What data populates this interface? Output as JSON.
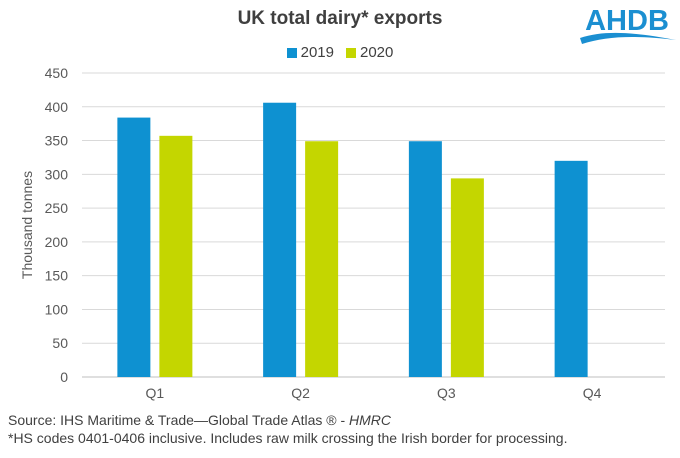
{
  "logo": {
    "text": "AHDB",
    "color": "#1b8fd1"
  },
  "colors": {
    "s2019": "#0e91d1",
    "s2020": "#c4d600",
    "grid": "#d9d9d9"
  },
  "footer": {
    "source_prefix": "Source: IHS Maritime & Trade—Global Trade Atlas ® - ",
    "source_italic": "HMRC",
    "note": "*HS codes 0401-0406 inclusive. Includes  raw milk crossing the Irish border for processing."
  },
  "chart_data": {
    "type": "bar",
    "title": "UK total dairy* exports",
    "ylabel": "Thousand tonnes",
    "xlabel": "",
    "categories": [
      "Q1",
      "Q2",
      "Q3",
      "Q4"
    ],
    "series": [
      {
        "name": "2019",
        "values": [
          384,
          406,
          349,
          320
        ]
      },
      {
        "name": "2020",
        "values": [
          357,
          349,
          294,
          null
        ]
      }
    ],
    "ylim": [
      0,
      450
    ],
    "yticks": [
      0,
      50,
      100,
      150,
      200,
      250,
      300,
      350,
      400,
      450
    ],
    "grid": true,
    "legend": "top-center"
  }
}
